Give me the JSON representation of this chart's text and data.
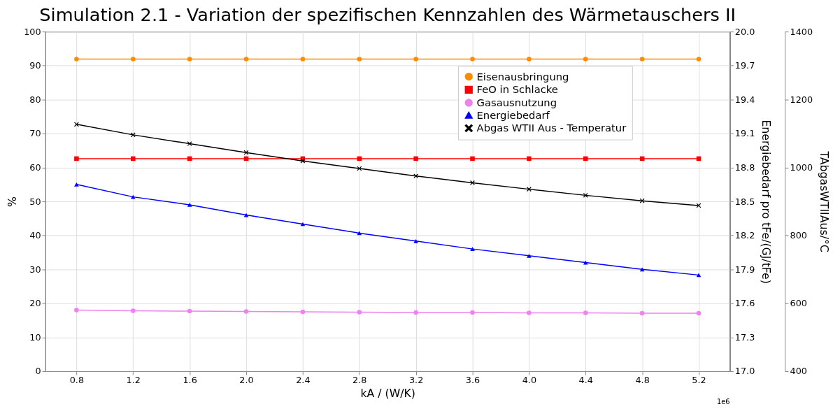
{
  "chart_data": {
    "type": "line",
    "title": "Simulation 2.1 - Variation der spezifischen Kennzahlen des Wärmetauschers II",
    "xlabel": "kA / (W/K)",
    "ylabel": "%",
    "y2label": "Energiebedarf pro tFe/(GJ/tFe)",
    "y3label": "TAbgasWTIIAus/°C",
    "x": [
      0.8,
      1.2,
      1.6,
      2.0,
      2.4,
      2.8,
      3.2,
      3.6,
      4.0,
      4.4,
      4.8,
      5.2
    ],
    "xlim": [
      0.58,
      5.42
    ],
    "xticks": [
      0.8,
      1.2,
      1.6,
      {
        "value": 2,
        "label": "2.0"
      },
      2.4,
      2.8,
      3.2,
      3.6,
      {
        "value": 4,
        "label": "4.0"
      },
      4.4,
      4.8,
      5.2
    ],
    "ylim": [
      0,
      100
    ],
    "yticks": [
      0,
      10,
      20,
      30,
      40,
      50,
      60,
      70,
      80,
      90,
      100
    ],
    "y2lim": [
      17.0,
      20.0
    ],
    "y2ticks": [
      {
        "value": 17,
        "label": "17.0"
      },
      17.3,
      17.6,
      17.9,
      18.2,
      18.5,
      18.8,
      19.1,
      19.4,
      19.7,
      {
        "value": 20,
        "label": "20.0"
      }
    ],
    "y3lim": [
      400,
      1400
    ],
    "y3ticks": [
      400,
      600,
      800,
      1000,
      1200,
      1400
    ],
    "grid": true,
    "legend": "top right",
    "line_style": "solid",
    "annotations": [
      "1e6"
    ],
    "series": [
      {
        "name": "Eisenausbringung",
        "color": "#ff8c00",
        "marker": "circle",
        "values": [
          91.9,
          91.9,
          91.9,
          91.9,
          91.9,
          91.9,
          91.9,
          91.9,
          91.9,
          91.9,
          91.9,
          91.9
        ]
      },
      {
        "name": "FeO in Schlacke",
        "color": "#ff0000",
        "marker": "square",
        "values": [
          62.6,
          62.6,
          62.6,
          62.6,
          62.6,
          62.6,
          62.6,
          62.6,
          62.6,
          62.6,
          62.6,
          62.6
        ]
      },
      {
        "name": "Gasausnutzung",
        "color": "#ee82ee",
        "marker": "circle",
        "values": [
          18.0,
          17.8,
          17.7,
          17.6,
          17.5,
          17.4,
          17.3,
          17.3,
          17.2,
          17.2,
          17.1,
          17.1
        ]
      },
      {
        "name": "Energiebedarf",
        "color": "#0000ff",
        "marker": "triangle",
        "axis": "y2",
        "values": [
          18.65,
          18.54,
          18.47,
          18.38,
          18.3,
          18.22,
          18.15,
          18.08,
          18.02,
          17.96,
          17.9,
          17.85
        ]
      },
      {
        "name": "Abgas WTII Aus - Temperatur",
        "color": "#000000",
        "marker": "cross",
        "axis": "y3",
        "values": [
          1127,
          1096,
          1070,
          1044,
          1019,
          997,
          975,
          955,
          936,
          918,
          902,
          888
        ]
      }
    ]
  }
}
